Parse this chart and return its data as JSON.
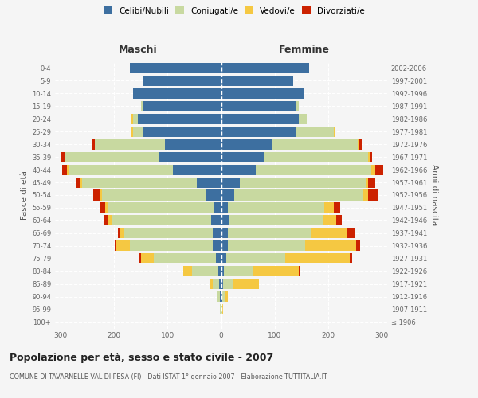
{
  "age_groups": [
    "100+",
    "95-99",
    "90-94",
    "85-89",
    "80-84",
    "75-79",
    "70-74",
    "65-69",
    "60-64",
    "55-59",
    "50-54",
    "45-49",
    "40-44",
    "35-39",
    "30-34",
    "25-29",
    "20-24",
    "15-19",
    "10-14",
    "5-9",
    "0-4"
  ],
  "birth_years": [
    "≤ 1906",
    "1907-1911",
    "1912-1916",
    "1917-1921",
    "1922-1926",
    "1927-1931",
    "1932-1936",
    "1937-1941",
    "1942-1946",
    "1947-1951",
    "1952-1956",
    "1957-1961",
    "1962-1966",
    "1967-1971",
    "1972-1976",
    "1977-1981",
    "1982-1986",
    "1987-1991",
    "1992-1996",
    "1997-2001",
    "2002-2006"
  ],
  "males": {
    "celibi": [
      0,
      0,
      2,
      3,
      5,
      10,
      15,
      15,
      18,
      12,
      28,
      45,
      90,
      115,
      105,
      145,
      155,
      145,
      165,
      145,
      170
    ],
    "coniugati": [
      0,
      2,
      5,
      12,
      50,
      115,
      155,
      165,
      185,
      200,
      195,
      215,
      195,
      175,
      130,
      20,
      10,
      5,
      0,
      0,
      0
    ],
    "vedovi": [
      0,
      0,
      1,
      5,
      15,
      25,
      25,
      10,
      8,
      5,
      3,
      2,
      2,
      1,
      1,
      2,
      2,
      0,
      0,
      0,
      0
    ],
    "divorziati": [
      0,
      0,
      0,
      0,
      0,
      2,
      3,
      3,
      8,
      10,
      12,
      10,
      10,
      8,
      5,
      0,
      0,
      0,
      0,
      0,
      0
    ]
  },
  "females": {
    "nubili": [
      0,
      0,
      2,
      3,
      5,
      10,
      12,
      12,
      15,
      12,
      25,
      35,
      65,
      80,
      95,
      140,
      145,
      140,
      155,
      135,
      165
    ],
    "coniugate": [
      0,
      2,
      5,
      18,
      55,
      110,
      145,
      155,
      175,
      180,
      240,
      235,
      215,
      195,
      160,
      70,
      15,
      5,
      0,
      0,
      0
    ],
    "vedove": [
      0,
      2,
      5,
      50,
      85,
      120,
      95,
      68,
      25,
      18,
      10,
      5,
      8,
      2,
      2,
      2,
      0,
      0,
      0,
      0,
      0
    ],
    "divorziate": [
      0,
      0,
      0,
      0,
      2,
      5,
      8,
      15,
      10,
      12,
      18,
      12,
      15,
      5,
      5,
      0,
      0,
      0,
      0,
      0,
      0
    ]
  },
  "colors": {
    "celibi": "#3d6fa0",
    "coniugati": "#c8d9a0",
    "vedovi": "#f5c842",
    "divorziati": "#cc2200"
  },
  "xlim": 310,
  "title": "Popolazione per età, sesso e stato civile - 2007",
  "subtitle": "COMUNE DI TAVARNELLE VAL DI PESA (FI) - Dati ISTAT 1° gennaio 2007 - Elaborazione TUTTITALIA.IT",
  "ylabel_left": "Fasce di età",
  "ylabel_right": "Anni di nascita",
  "legend_labels": [
    "Celibi/Nubili",
    "Coniugati/e",
    "Vedovi/e",
    "Divorziati/e"
  ],
  "maschi_label": "Maschi",
  "femmine_label": "Femmine",
  "bg_color": "#f5f5f5",
  "plot_bg": "#f5f5f5"
}
